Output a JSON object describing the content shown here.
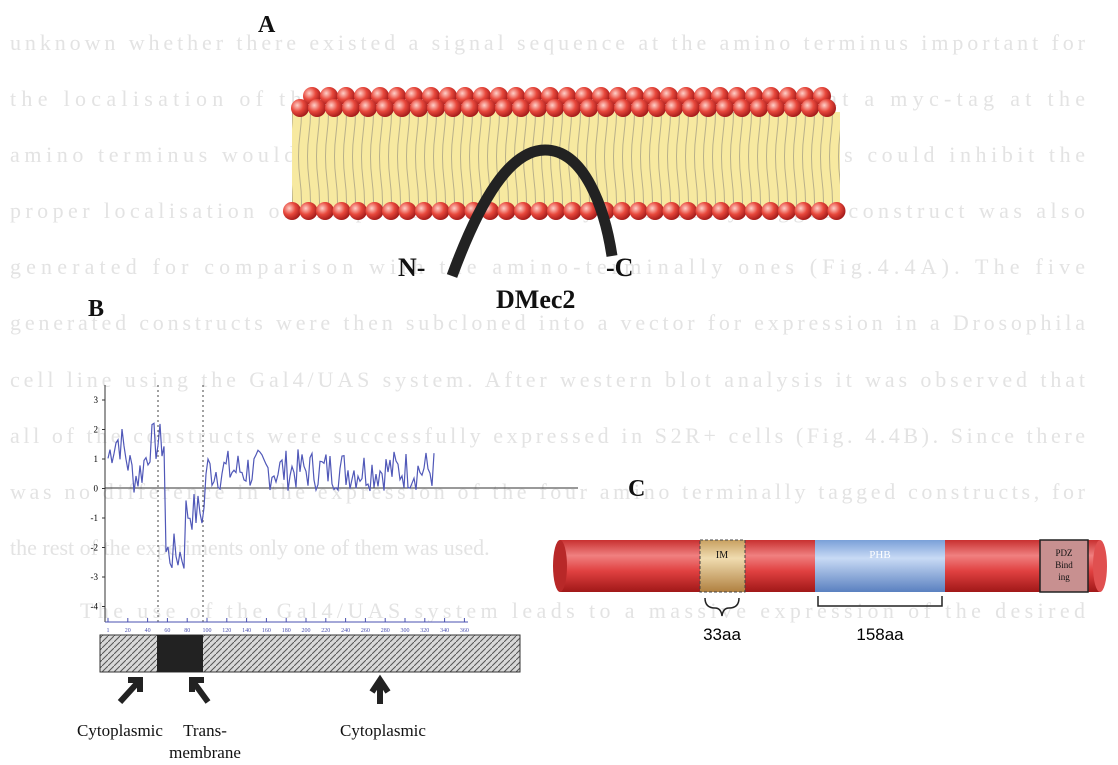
{
  "body_text": {
    "lines": [
      "unknown whether there existed a signal sequence at the amino terminus important for",
      "the localisation of the protein, and it was also possible that a myc-tag at the",
      "amino terminus would affect the folding of the protein and thus could inhibit the",
      "proper localisation of the protein. A carboxy terminally tagged construct was also",
      "generated for comparison with the amino-terminally ones (Fig.4.4A). The five",
      "generated constructs were then subcloned into a vector for expression in a Drosophila",
      "cell line using the Gal4/UAS system. After western blot analysis it was observed that",
      "all of the constructs were successfully expressed in S2R+ cells (Fig. 4.4B). Since there",
      "was no difference in the expression of the four amino terminally tagged constructs, for",
      "the rest of the experiments only one of them was used.",
      "The use of the Gal4/UAS system leads to a massive expression of the desired"
    ]
  },
  "figure": {
    "panel_a": {
      "label": "A",
      "n_term": "N-",
      "c_term": "-C",
      "protein": "DMec2"
    },
    "panel_b": {
      "label": "B",
      "yticks": [
        "3",
        "2",
        "1",
        "0",
        "-1",
        "-2",
        "-3",
        "-4"
      ],
      "xticks": [
        "1",
        "20",
        "40",
        "60",
        "80",
        "100",
        "120",
        "140",
        "160",
        "180",
        "200",
        "220",
        "240",
        "260",
        "280",
        "300",
        "320",
        "340",
        "360"
      ],
      "regions": [
        [
          "Cytoplasmic"
        ],
        [
          "Trans-",
          "membrane"
        ],
        [
          "Cytoplasmic"
        ]
      ]
    },
    "panel_c": {
      "label": "C",
      "domains": [
        "IM",
        "PHB"
      ],
      "pdz": [
        "PDZ",
        "Bind",
        "ing"
      ],
      "lengths": [
        "33aa",
        "158aa"
      ]
    }
  }
}
